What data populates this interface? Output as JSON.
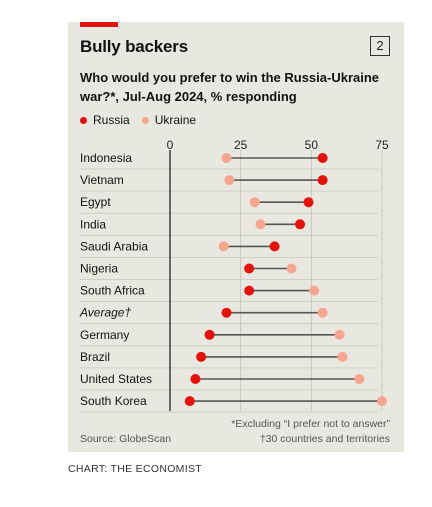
{
  "header": {
    "title": "Bully backers",
    "badge": "2",
    "subtitle": "Who would you prefer to win the Russia-Ukraine war?*, Jul-Aug 2024, % responding"
  },
  "legend": [
    {
      "name": "Russia",
      "color": "#e3120b"
    },
    {
      "name": "Ukraine",
      "color": "#f6a68e"
    }
  ],
  "footer": {
    "source": "Source: GlobeScan",
    "note1": "*Excluding “I prefer not to answer”",
    "note2": "†30 countries and territories",
    "credit": "CHART: THE ECONOMIST"
  },
  "colors": {
    "accent": "#e3120b",
    "russia": "#e3120b",
    "ukraine": "#f6a68e",
    "connector": "#555555",
    "grid": "#c9c7bd"
  },
  "chart_data": {
    "type": "dumbbell",
    "xlim": [
      0,
      75
    ],
    "ticks": [
      0,
      25,
      50,
      75
    ],
    "grid": true,
    "categories": [
      "Indonesia",
      "Vietnam",
      "Egypt",
      "India",
      "Saudi Arabia",
      "Nigeria",
      "South Africa",
      "Average†",
      "Germany",
      "Brazil",
      "United States",
      "South Korea"
    ],
    "series": [
      {
        "name": "Russia",
        "values": [
          54,
          54,
          49,
          46,
          37,
          28,
          28,
          20,
          14,
          11,
          9,
          7
        ]
      },
      {
        "name": "Ukraine",
        "values": [
          20,
          21,
          30,
          32,
          19,
          43,
          51,
          54,
          60,
          61,
          67,
          75
        ]
      }
    ]
  }
}
